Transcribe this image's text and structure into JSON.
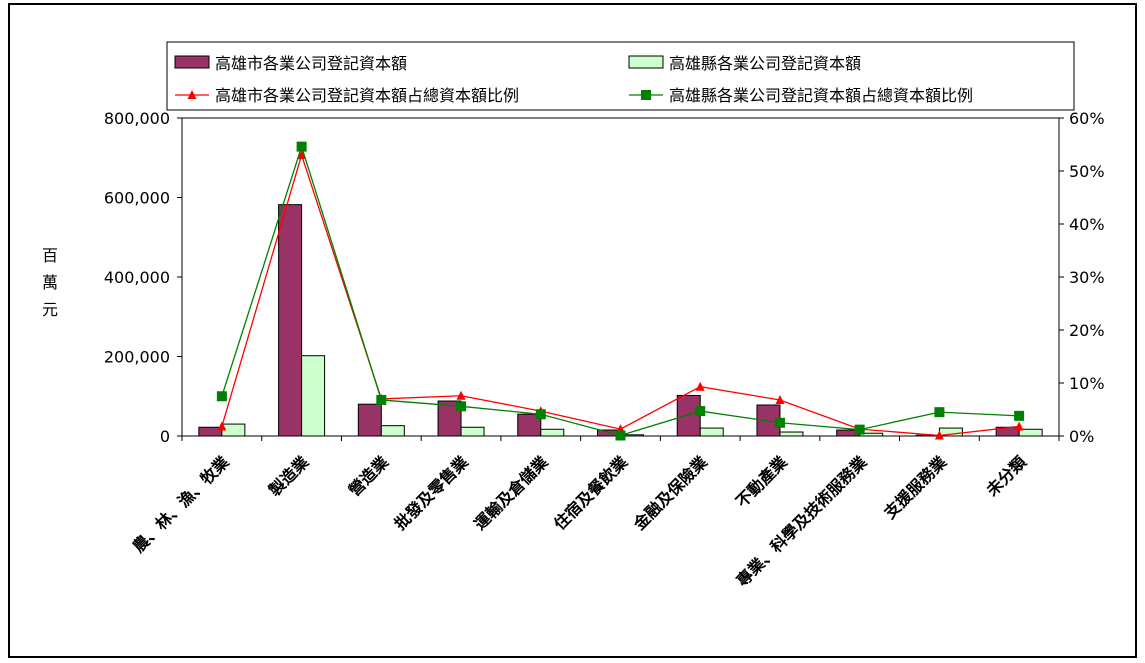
{
  "chart_data": {
    "type": "bar",
    "categories": [
      "農、林、漁、牧業",
      "製造業",
      "營造業",
      "批發及零售業",
      "運輸及倉儲業",
      "住宿及餐飲業",
      "金融及保險業",
      "不動產業",
      "專業、科學及技術服務業",
      "支援服務業",
      "未分類"
    ],
    "ylabel": "百萬元",
    "ylim": [
      0,
      800000
    ],
    "y_ticks": [
      "0",
      "200,000",
      "400,000",
      "600,000",
      "800,000"
    ],
    "y2lim": [
      0,
      60
    ],
    "y2_ticks": [
      "0%",
      "10%",
      "20%",
      "30%",
      "40%",
      "50%",
      "60%"
    ],
    "series": [
      {
        "name": "高雄市各業公司登記資本額",
        "kind": "bar",
        "axis": "left",
        "color": "#993366",
        "values": [
          22000,
          582000,
          80000,
          88000,
          55000,
          15000,
          102000,
          78000,
          15000,
          2000,
          22000
        ]
      },
      {
        "name": "高雄縣各業公司登記資本額",
        "kind": "bar",
        "axis": "left",
        "color": "#CCFFCC",
        "values": [
          30000,
          202000,
          26000,
          22000,
          17000,
          3000,
          20000,
          10000,
          7000,
          20000,
          17000
        ]
      },
      {
        "name": "高雄市各業公司登記資本額占總資本額比例",
        "kind": "line",
        "axis": "right",
        "color": "#FF0000",
        "marker": "triangle",
        "values": [
          1.8,
          53.0,
          7.0,
          7.6,
          4.7,
          1.3,
          9.3,
          6.8,
          1.3,
          0.1,
          1.8
        ]
      },
      {
        "name": "高雄縣各業公司登記資本額占總資本額比例",
        "kind": "line",
        "axis": "right",
        "color": "#008000",
        "marker": "square",
        "values": [
          7.5,
          54.6,
          6.8,
          5.6,
          4.1,
          0.1,
          4.7,
          2.5,
          1.2,
          4.5,
          3.8
        ]
      }
    ],
    "legend_position": "top"
  }
}
